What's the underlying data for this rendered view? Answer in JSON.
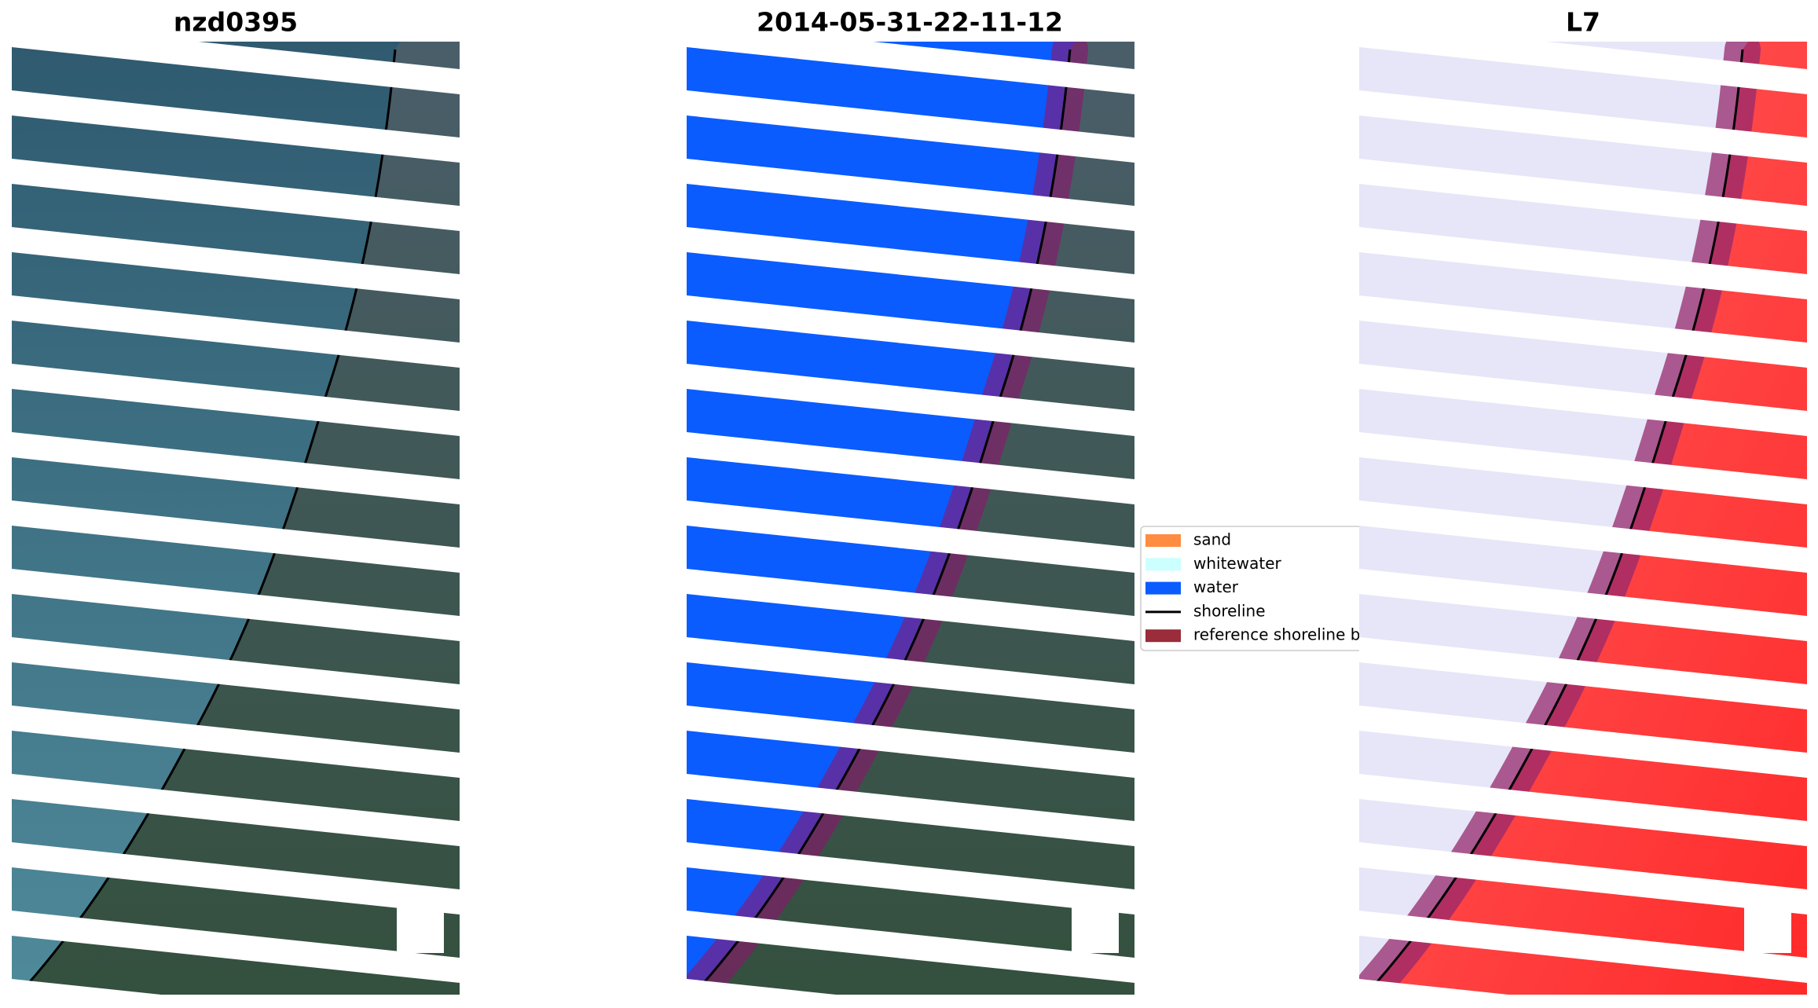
{
  "panels": [
    {
      "title": "nzd0395"
    },
    {
      "title": "2014-05-31-22-11-12"
    },
    {
      "title": "L7"
    }
  ],
  "legend": {
    "entries": [
      {
        "label": "sand",
        "color": "#ff8c40"
      },
      {
        "label": "whitewater",
        "color": "#ccffff"
      },
      {
        "label": "water",
        "color": "#0a5cff"
      },
      {
        "label": "shoreline",
        "color": "#000000"
      },
      {
        "label": "reference shoreline buffer",
        "color": "#9b2c3a"
      }
    ]
  }
}
